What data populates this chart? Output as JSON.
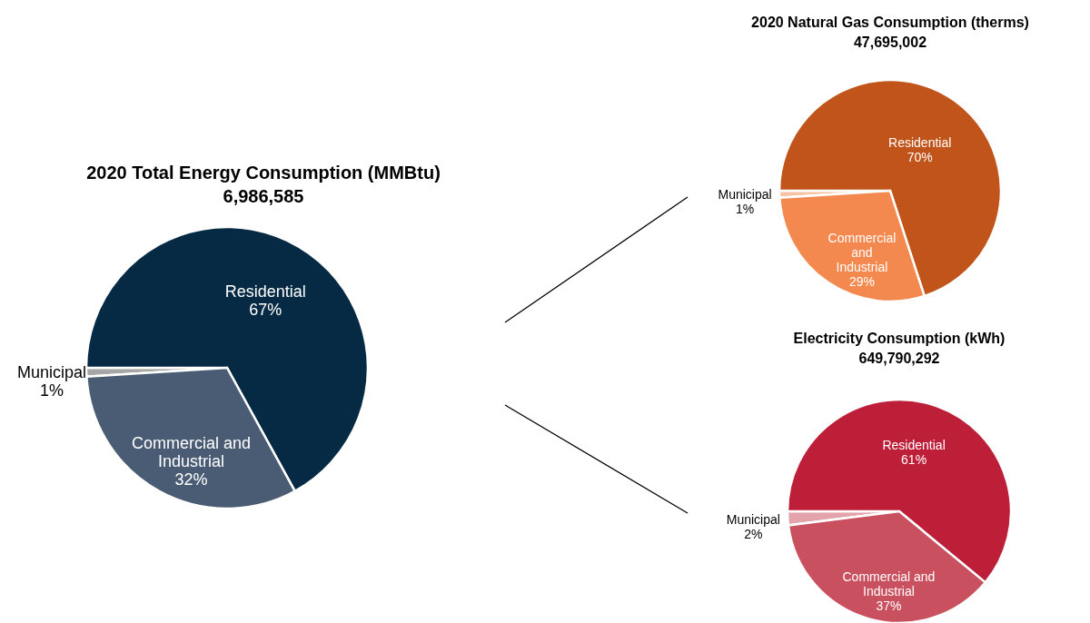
{
  "chart_data": [
    {
      "type": "pie",
      "title": "2020  Total Energy Consumption (MMBtu)",
      "subtitle": "6,986,585",
      "categories": [
        "Municipal",
        "Residential",
        "Commercial and Industrial"
      ],
      "values": [
        1,
        67,
        32
      ],
      "colors": [
        "#a6a6a6",
        "#062a44",
        "#4a5c74"
      ],
      "value_labels": [
        "1%",
        "67%",
        "32%"
      ]
    },
    {
      "type": "pie",
      "title": "2020  Natural Gas Consumption (therms)",
      "subtitle": "47,695,002",
      "categories": [
        "Municipal",
        "Residential",
        "Commercial and Industrial"
      ],
      "values": [
        1,
        70,
        29
      ],
      "colors": [
        "#f6c3a5",
        "#c0541a",
        "#f4894f"
      ],
      "value_labels": [
        "1%",
        "70%",
        "29%"
      ]
    },
    {
      "type": "pie",
      "title": "Electricity Consumption (kWh)",
      "subtitle": "649,790,292",
      "categories": [
        "Municipal",
        "Residential",
        "Commercial and Industrial"
      ],
      "values": [
        2,
        61,
        37
      ],
      "colors": [
        "#e2a3ab",
        "#be1f38",
        "#c9505e"
      ],
      "value_labels": [
        "2%",
        "61%",
        "37%"
      ]
    }
  ]
}
